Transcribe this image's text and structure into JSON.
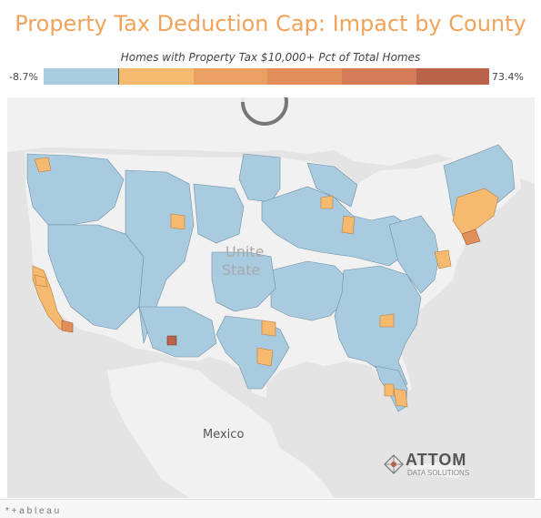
{
  "title": "Property Tax Deduction Cap: Impact by County",
  "subtitle": "Homes with Property Tax $10,000+ Pct of Total Homes",
  "legend": {
    "min_label": "-8.7%",
    "max_label": "73.4%",
    "colors": [
      "#a9cbe0",
      "#f5b96f",
      "#eaa063",
      "#e08e5a",
      "#d27b56",
      "#b8634a"
    ]
  },
  "map": {
    "country_label_us_line1": "Unite",
    "country_label_us_line2": "State",
    "country_label_mexico": "Mexico",
    "water_color": "#e4e4e4",
    "land_color": "#f1f1f1",
    "loading_spinner": "spinner-icon"
  },
  "branding": {
    "logo_text": "ATTOM",
    "logo_sub": "DATA SOLUTIONS"
  },
  "footer": {
    "mark": "* + a b l e a u"
  }
}
